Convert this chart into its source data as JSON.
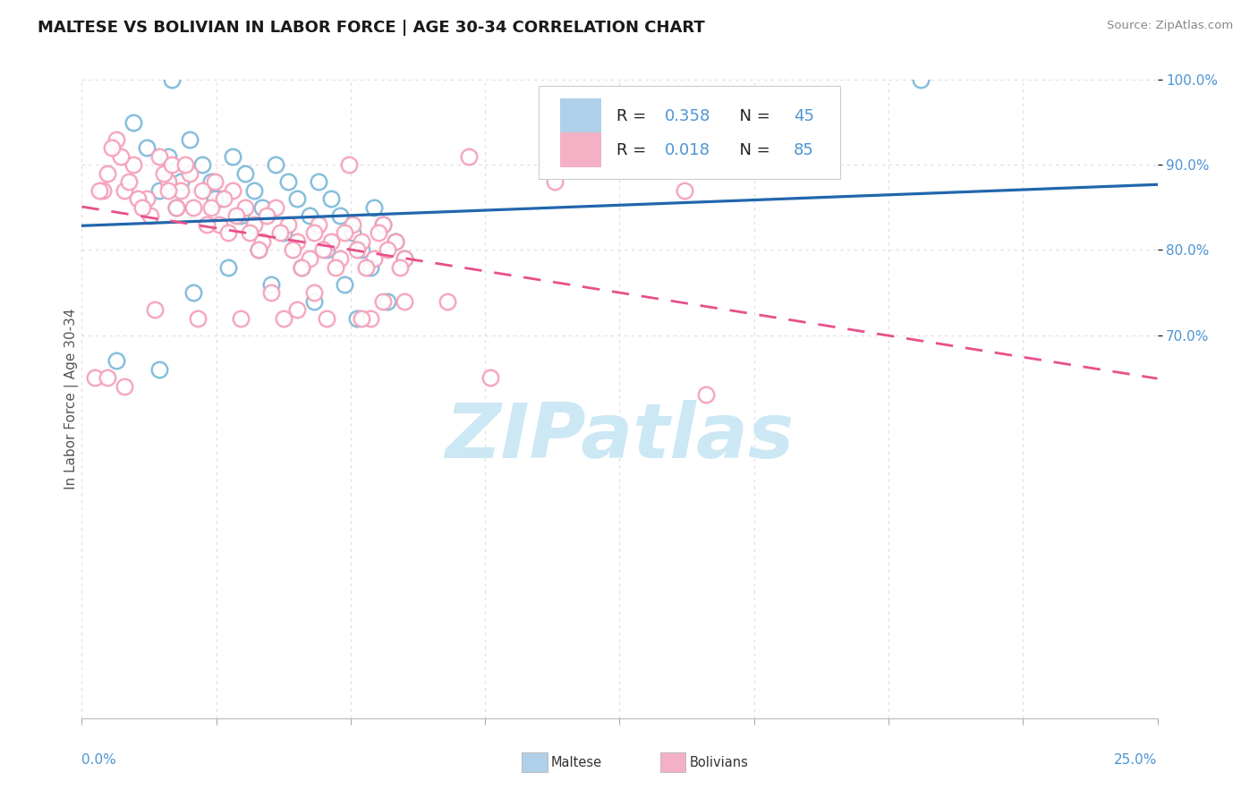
{
  "title": "MALTESE VS BOLIVIAN IN LABOR FORCE | AGE 30-34 CORRELATION CHART",
  "source": "Source: ZipAtlas.com",
  "ylabel": "In Labor Force | Age 30-34",
  "xmin": 0.0,
  "xmax": 25.0,
  "ymin": 25.0,
  "ymax": 100.0,
  "yticks": [
    70.0,
    80.0,
    90.0,
    100.0
  ],
  "legend_R_blue": "0.358",
  "legend_N_blue": "45",
  "legend_R_pink": "0.018",
  "legend_N_pink": "85",
  "blue_scatter_color": "#7ab8d9",
  "pink_scatter_color": "#f4a0b8",
  "trend_blue_color": "#2166ac",
  "trend_pink_color": "#e8508a",
  "watermark_color": "#cde8f5",
  "grid_color": "#dddddd",
  "axis_label_color": "#4d94d4",
  "title_color": "#1a1a1a",
  "maltese_x": [
    2.1,
    1.2,
    1.8,
    2.0,
    2.2,
    2.5,
    2.8,
    3.0,
    3.2,
    3.5,
    3.8,
    4.0,
    4.2,
    4.5,
    4.8,
    5.0,
    5.3,
    5.5,
    5.8,
    6.0,
    6.3,
    6.5,
    6.8,
    7.0,
    7.3,
    7.5,
    1.5,
    1.8,
    2.3,
    2.6,
    3.1,
    3.4,
    3.7,
    4.1,
    4.4,
    4.7,
    5.1,
    5.4,
    5.7,
    6.1,
    6.4,
    6.7,
    7.1,
    19.5,
    0.8
  ],
  "maltese_y": [
    100.0,
    95.0,
    87.0,
    91.0,
    85.0,
    93.0,
    90.0,
    88.0,
    86.0,
    91.0,
    89.0,
    87.0,
    85.0,
    90.0,
    88.0,
    86.0,
    84.0,
    88.0,
    86.0,
    84.0,
    82.0,
    80.0,
    85.0,
    83.0,
    81.0,
    79.0,
    92.0,
    66.0,
    88.0,
    75.0,
    86.0,
    78.0,
    84.0,
    80.0,
    76.0,
    82.0,
    78.0,
    74.0,
    80.0,
    76.0,
    72.0,
    78.0,
    74.0,
    100.0,
    67.0
  ],
  "bolivian_x": [
    0.5,
    0.8,
    1.0,
    1.2,
    1.5,
    1.8,
    2.0,
    2.2,
    2.5,
    2.8,
    3.0,
    3.2,
    3.5,
    3.8,
    4.0,
    4.2,
    4.5,
    4.8,
    5.0,
    5.3,
    5.5,
    5.8,
    6.0,
    6.3,
    6.5,
    6.8,
    7.0,
    7.3,
    7.5,
    0.6,
    0.9,
    1.1,
    1.3,
    1.6,
    1.9,
    2.1,
    2.3,
    2.6,
    2.9,
    3.1,
    3.3,
    3.6,
    3.9,
    4.1,
    4.3,
    4.6,
    4.9,
    5.1,
    5.4,
    5.6,
    5.9,
    6.1,
    6.4,
    6.6,
    6.9,
    7.1,
    7.4,
    9.0,
    14.0,
    0.7,
    1.4,
    2.4,
    3.4,
    4.4,
    5.4,
    0.4,
    1.7,
    2.7,
    3.7,
    4.7,
    5.7,
    6.7,
    1.0,
    9.5,
    14.5,
    7.0,
    0.3,
    0.6,
    2.0,
    5.0,
    7.5,
    6.2,
    11.0,
    8.5,
    6.5
  ],
  "bolivian_y": [
    87.0,
    93.0,
    87.0,
    90.0,
    86.0,
    91.0,
    88.0,
    85.0,
    89.0,
    87.0,
    85.0,
    83.0,
    87.0,
    85.0,
    83.0,
    81.0,
    85.0,
    83.0,
    81.0,
    79.0,
    83.0,
    81.0,
    79.0,
    83.0,
    81.0,
    79.0,
    83.0,
    81.0,
    79.0,
    89.0,
    91.0,
    88.0,
    86.0,
    84.0,
    89.0,
    90.0,
    87.0,
    85.0,
    83.0,
    88.0,
    86.0,
    84.0,
    82.0,
    80.0,
    84.0,
    82.0,
    80.0,
    78.0,
    82.0,
    80.0,
    78.0,
    82.0,
    80.0,
    78.0,
    82.0,
    80.0,
    78.0,
    91.0,
    87.0,
    92.0,
    85.0,
    90.0,
    82.0,
    75.0,
    75.0,
    87.0,
    73.0,
    72.0,
    72.0,
    72.0,
    72.0,
    72.0,
    64.0,
    65.0,
    63.0,
    74.0,
    65.0,
    65.0,
    87.0,
    73.0,
    74.0,
    90.0,
    88.0,
    74.0,
    72.0
  ]
}
